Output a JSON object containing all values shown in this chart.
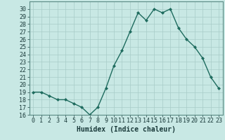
{
  "x": [
    0,
    1,
    2,
    3,
    4,
    5,
    6,
    7,
    8,
    9,
    10,
    11,
    12,
    13,
    14,
    15,
    16,
    17,
    18,
    19,
    20,
    21,
    22,
    23
  ],
  "y": [
    19,
    19,
    18.5,
    18,
    18,
    17.5,
    17,
    16,
    17,
    19.5,
    22.5,
    24.5,
    27,
    29.5,
    28.5,
    30,
    29.5,
    30,
    27.5,
    26,
    25,
    23.5,
    21,
    19.5
  ],
  "line_color": "#1e6b5e",
  "marker": "D",
  "markersize": 2.0,
  "bg_color": "#c8e8e4",
  "grid_color": "#a8ccc8",
  "xlabel": "Humidex (Indice chaleur)",
  "ylim": [
    16,
    31
  ],
  "xlim": [
    -0.5,
    23.5
  ],
  "yticks": [
    16,
    17,
    18,
    19,
    20,
    21,
    22,
    23,
    24,
    25,
    26,
    27,
    28,
    29,
    30
  ],
  "xticks": [
    0,
    1,
    2,
    3,
    4,
    5,
    6,
    7,
    8,
    9,
    10,
    11,
    12,
    13,
    14,
    15,
    16,
    17,
    18,
    19,
    20,
    21,
    22,
    23
  ],
  "xlabel_fontsize": 7,
  "tick_fontsize": 6,
  "linewidth": 1.0
}
